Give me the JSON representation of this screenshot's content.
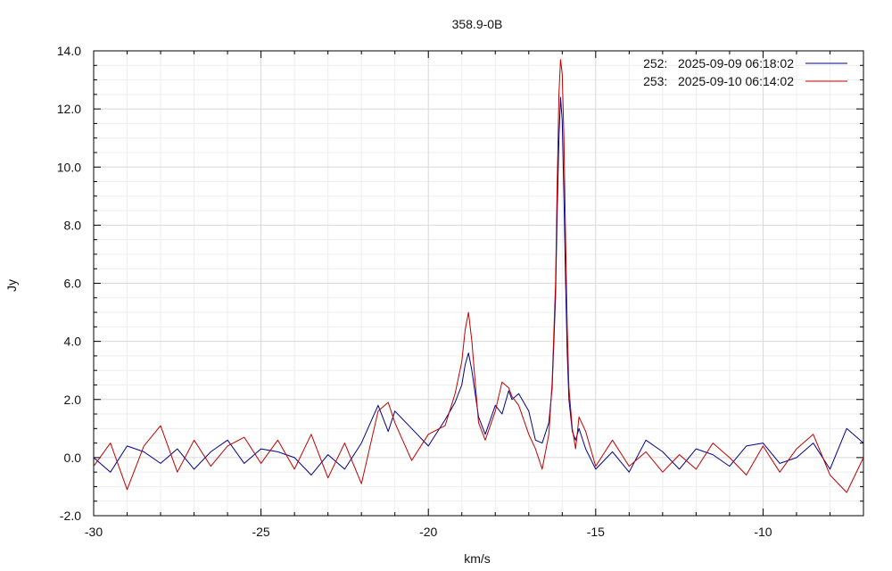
{
  "chart_data": {
    "type": "line",
    "title": "358.9-0B",
    "xlabel": "km/s",
    "ylabel": "Jy",
    "xlim": [
      -30,
      -7.0
    ],
    "ylim": [
      -2.0,
      14.0
    ],
    "xticks": [
      -30,
      -25,
      -20,
      -15,
      -10
    ],
    "xtick_labels": [
      "-30",
      "-25",
      "-20",
      "-15",
      "-10"
    ],
    "yticks": [
      -2,
      0,
      2,
      4,
      6,
      8,
      10,
      12,
      14
    ],
    "ytick_labels": [
      "-2.0",
      "0.0",
      "2.0",
      "4.0",
      "6.0",
      "8.0",
      "10.0",
      "12.0",
      "14.0"
    ],
    "grid": true,
    "legend_position": "top-right",
    "colors": {
      "series_252": "#00008b",
      "series_253": "#c00000",
      "grid": "#d8d8d8"
    },
    "series": [
      {
        "name": "252:   2025-09-09 06:18:02",
        "color": "#00008b",
        "x": [
          -30.0,
          -29.5,
          -29.0,
          -28.5,
          -28.0,
          -27.5,
          -27.0,
          -26.5,
          -26.0,
          -25.5,
          -25.0,
          -24.5,
          -24.0,
          -23.5,
          -23.0,
          -22.5,
          -22.0,
          -21.5,
          -21.2,
          -21.0,
          -20.5,
          -20.0,
          -19.5,
          -19.2,
          -19.0,
          -18.9,
          -18.8,
          -18.7,
          -18.6,
          -18.5,
          -18.3,
          -18.0,
          -17.8,
          -17.6,
          -17.5,
          -17.3,
          -17.0,
          -16.8,
          -16.6,
          -16.4,
          -16.3,
          -16.2,
          -16.15,
          -16.1,
          -16.05,
          -16.0,
          -15.95,
          -15.9,
          -15.85,
          -15.8,
          -15.7,
          -15.6,
          -15.5,
          -15.3,
          -15.0,
          -14.5,
          -14.0,
          -13.5,
          -13.0,
          -12.5,
          -12.0,
          -11.5,
          -11.0,
          -10.5,
          -10.0,
          -9.5,
          -9.0,
          -8.5,
          -8.0,
          -7.5,
          -7.0
        ],
        "y": [
          0.0,
          -0.5,
          0.4,
          0.2,
          -0.2,
          0.3,
          -0.4,
          0.2,
          0.6,
          -0.2,
          0.3,
          0.2,
          0.0,
          -0.6,
          0.1,
          -0.4,
          0.5,
          1.8,
          0.9,
          1.6,
          1.0,
          0.4,
          1.3,
          1.9,
          2.5,
          3.2,
          3.6,
          3.0,
          2.2,
          1.4,
          0.8,
          1.8,
          1.5,
          2.3,
          2.0,
          2.2,
          1.6,
          0.6,
          0.5,
          1.2,
          2.4,
          5.5,
          8.5,
          11.0,
          12.4,
          11.6,
          9.0,
          6.0,
          3.6,
          2.0,
          0.9,
          0.6,
          1.0,
          0.3,
          -0.4,
          0.2,
          -0.5,
          0.6,
          0.2,
          -0.4,
          0.3,
          0.1,
          -0.3,
          0.4,
          0.5,
          -0.2,
          0.0,
          0.5,
          -0.4,
          1.0,
          0.5
        ]
      },
      {
        "name": "253:   2025-09-10 06:14:02",
        "color": "#c00000",
        "x": [
          -30.0,
          -29.5,
          -29.0,
          -28.5,
          -28.0,
          -27.5,
          -27.0,
          -26.5,
          -26.0,
          -25.5,
          -25.0,
          -24.5,
          -24.0,
          -23.5,
          -23.0,
          -22.5,
          -22.0,
          -21.5,
          -21.2,
          -21.0,
          -20.5,
          -20.0,
          -19.5,
          -19.2,
          -19.0,
          -18.9,
          -18.8,
          -18.7,
          -18.6,
          -18.5,
          -18.3,
          -18.0,
          -17.8,
          -17.6,
          -17.5,
          -17.3,
          -17.0,
          -16.8,
          -16.6,
          -16.4,
          -16.3,
          -16.2,
          -16.15,
          -16.1,
          -16.05,
          -16.0,
          -15.95,
          -15.9,
          -15.85,
          -15.8,
          -15.7,
          -15.6,
          -15.5,
          -15.3,
          -15.0,
          -14.5,
          -14.0,
          -13.5,
          -13.0,
          -12.5,
          -12.0,
          -11.5,
          -11.0,
          -10.5,
          -10.0,
          -9.5,
          -9.0,
          -8.5,
          -8.0,
          -7.5,
          -7.0
        ],
        "y": [
          -0.3,
          0.5,
          -1.1,
          0.4,
          1.1,
          -0.5,
          0.6,
          -0.3,
          0.4,
          0.7,
          -0.2,
          0.6,
          -0.4,
          0.8,
          -0.7,
          0.5,
          -0.9,
          1.6,
          1.9,
          1.2,
          -0.1,
          0.8,
          1.1,
          2.2,
          3.3,
          4.4,
          5.0,
          4.0,
          2.6,
          1.2,
          0.6,
          1.6,
          2.6,
          2.4,
          2.1,
          1.8,
          0.8,
          0.3,
          -0.4,
          0.8,
          2.6,
          6.0,
          9.5,
          12.5,
          13.7,
          13.2,
          11.0,
          7.5,
          4.5,
          2.4,
          1.0,
          0.3,
          1.4,
          0.9,
          -0.3,
          0.6,
          -0.3,
          0.2,
          -0.5,
          0.1,
          -0.4,
          0.5,
          0.0,
          -0.6,
          0.4,
          -0.5,
          0.3,
          0.8,
          -0.6,
          -1.2,
          0.0
        ]
      }
    ]
  }
}
